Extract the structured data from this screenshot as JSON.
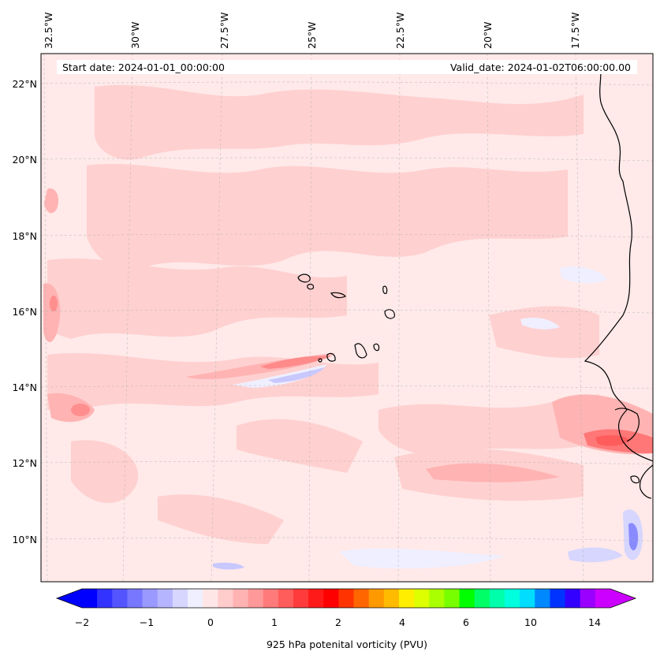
{
  "map": {
    "info": {
      "start": "Start date: 2024-01-01_00:00:00",
      "valid": "Valid_date: 2024-01-02T06:00:00.00"
    },
    "lon_labels": [
      "32.5°W",
      "30°W",
      "27.5°W",
      "25°W",
      "22.5°W",
      "20°W",
      "17.5°W"
    ],
    "lat_labels": [
      "22°N",
      "20°N",
      "18°N",
      "16°N",
      "14°N",
      "12°N",
      "10°N"
    ],
    "gridlines": true,
    "coastline_color": "#000000",
    "background_color": "#ffe9e9"
  },
  "colorbar": {
    "label": "925 hPa potenital vorticity (PVU)",
    "ticks": [
      "−2",
      "−1",
      "0",
      "1",
      "2",
      "4",
      "6",
      "10",
      "14"
    ],
    "colors": [
      "#0000ff",
      "#3333ff",
      "#5555ff",
      "#7777ff",
      "#9999ff",
      "#b5b5ff",
      "#d6d6ff",
      "#efefff",
      "#ffe6e6",
      "#ffcccc",
      "#ffb3b3",
      "#ff9999",
      "#ff7a7a",
      "#ff5c5c",
      "#ff3b3b",
      "#ff1a1a",
      "#ff0000",
      "#ff3300",
      "#ff6600",
      "#ff9900",
      "#ffbb00",
      "#ffee00",
      "#ddff00",
      "#aaff00",
      "#77ff00",
      "#00ff00",
      "#00ff66",
      "#00ffaa",
      "#00ffdd",
      "#00ddff",
      "#0088ff",
      "#0033ff",
      "#3300ff",
      "#9900ff",
      "#cc00ff"
    ],
    "extend": "both"
  }
}
